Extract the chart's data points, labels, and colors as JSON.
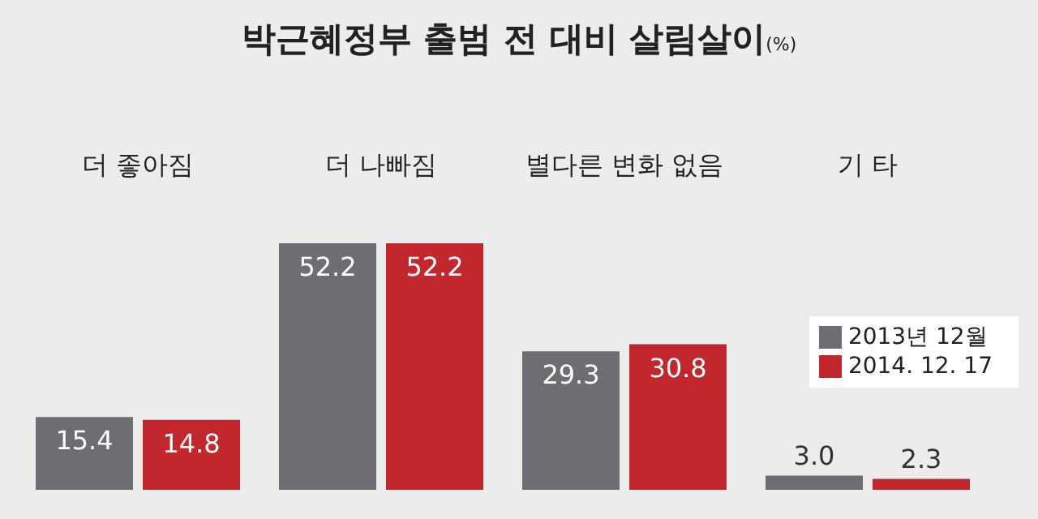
{
  "chart_data": {
    "type": "bar",
    "title": "박근혜정부 출범 전 대비 살림살이",
    "subtitle": "(%)",
    "categories": [
      "더 좋아짐",
      "더 나빠짐",
      "별다른 변화 없음",
      "기 타"
    ],
    "series": [
      {
        "name": "2013년 12월",
        "color": "#6d6e71",
        "values": [
          15.4,
          52.2,
          29.3,
          3.0
        ],
        "value_labels": [
          "15.4",
          "52.2",
          "29.3",
          "3.0"
        ]
      },
      {
        "name": "2014. 12. 17",
        "color": "#c1272d",
        "values": [
          14.8,
          52.2,
          30.8,
          2.3
        ]
      }
    ],
    "data_labels": true,
    "legend": "top right",
    "grid": false
  }
}
